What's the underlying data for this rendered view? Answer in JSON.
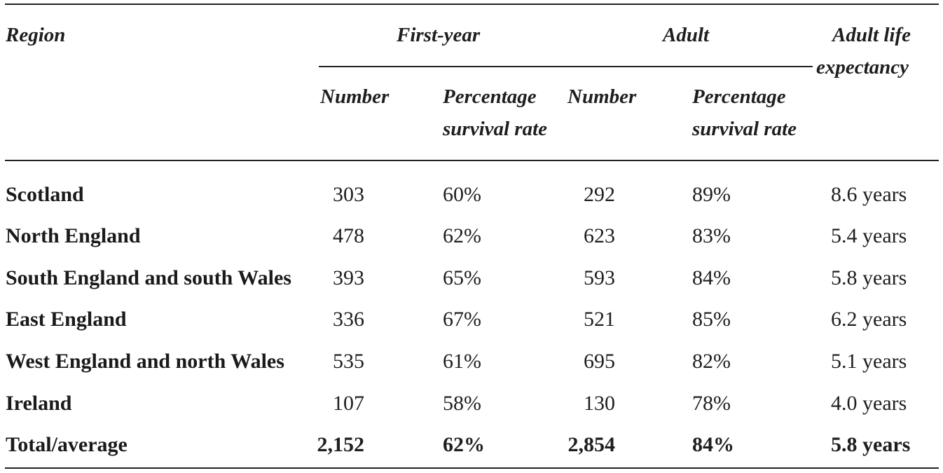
{
  "header": {
    "region": "Region",
    "first_year": "First-year",
    "adult": "Adult",
    "life_expectancy_line1": "Adult life",
    "life_expectancy_line2": "expectancy",
    "number": "Number",
    "pct_line1": "Percentage",
    "pct_line2": "survival rate"
  },
  "rows": [
    {
      "region": "Scotland",
      "fy_number": "303",
      "fy_pct": "60%",
      "ad_number": "292",
      "ad_pct": "89%",
      "life": "8.6 years"
    },
    {
      "region": "North England",
      "fy_number": "478",
      "fy_pct": "62%",
      "ad_number": "623",
      "ad_pct": "83%",
      "life": "5.4 years"
    },
    {
      "region": "South England and south Wales",
      "fy_number": "393",
      "fy_pct": "65%",
      "ad_number": "593",
      "ad_pct": "84%",
      "life": "5.8 years"
    },
    {
      "region": "East England",
      "fy_number": "336",
      "fy_pct": "67%",
      "ad_number": "521",
      "ad_pct": "85%",
      "life": "6.2 years"
    },
    {
      "region": "West England and north Wales",
      "fy_number": "535",
      "fy_pct": "61%",
      "ad_number": "695",
      "ad_pct": "82%",
      "life": "5.1 years"
    },
    {
      "region": "Ireland",
      "fy_number": "107",
      "fy_pct": "58%",
      "ad_number": "130",
      "ad_pct": "78%",
      "life": "4.0 years"
    }
  ],
  "total": {
    "region": "Total/average",
    "fy_number": "2,152",
    "fy_pct": "62%",
    "ad_number": "2,854",
    "ad_pct": "84%",
    "life": "5.8 years"
  }
}
